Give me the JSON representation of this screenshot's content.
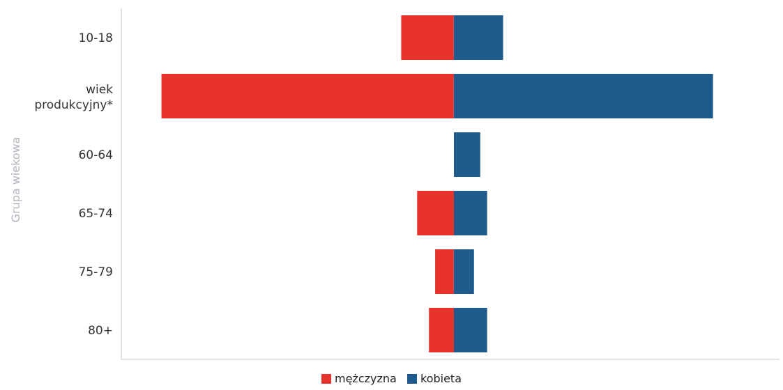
{
  "chart_data": {
    "type": "bar",
    "orientation": "horizontal",
    "stacked": "diverging",
    "ylabel": "Grupa wiekowa",
    "categories": [
      "10-18",
      "wiek produkcyjny*",
      "60-64",
      "65-74",
      "75-79",
      "80+"
    ],
    "series": [
      {
        "name": "mężczyzna",
        "color": "#e8322c",
        "values": [
          -76,
          -422,
          0,
          -53,
          -27,
          -36
        ]
      },
      {
        "name": "kobieta",
        "color": "#1f5a8c",
        "values": [
          71,
          374,
          38,
          48,
          29,
          48
        ]
      }
    ],
    "xlim": [
      -480,
      470
    ],
    "grid": false,
    "legend": "bottom-center"
  }
}
